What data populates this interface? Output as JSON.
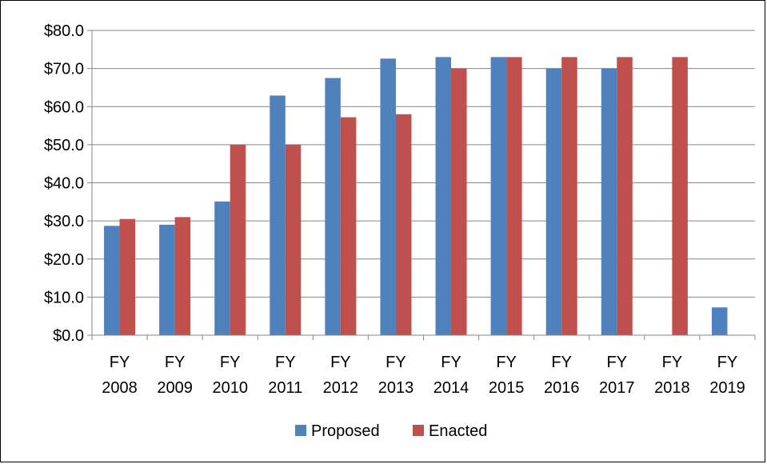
{
  "chart_data": {
    "type": "bar",
    "title": "",
    "xlabel": "",
    "ylabel": "",
    "categories": [
      [
        "FY",
        "2008"
      ],
      [
        "FY",
        "2009"
      ],
      [
        "FY",
        "2010"
      ],
      [
        "FY",
        "2011"
      ],
      [
        "FY",
        "2012"
      ],
      [
        "FY",
        "2013"
      ],
      [
        "FY",
        "2014"
      ],
      [
        "FY",
        "2015"
      ],
      [
        "FY",
        "2016"
      ],
      [
        "FY",
        "2017"
      ],
      [
        "FY",
        "2018"
      ],
      [
        "FY",
        "2019"
      ]
    ],
    "series": [
      {
        "name": "Proposed",
        "color": "#4f81bd",
        "values": [
          28.7,
          29.0,
          35.1,
          62.9,
          67.5,
          72.6,
          73.0,
          73.0,
          70.0,
          70.0,
          null,
          7.3
        ]
      },
      {
        "name": "Enacted",
        "color": "#c0504d",
        "values": [
          30.5,
          31.0,
          50.0,
          50.0,
          57.2,
          58.0,
          70.0,
          73.0,
          73.0,
          73.0,
          73.0,
          null
        ]
      }
    ],
    "ylim": [
      0,
      80
    ],
    "yticks": [
      0,
      10,
      20,
      30,
      40,
      50,
      60,
      70,
      80
    ],
    "ytick_labels": [
      "$0.0",
      "$10.0",
      "$20.0",
      "$30.0",
      "$40.0",
      "$50.0",
      "$60.0",
      "$70.0",
      "$80.0"
    ],
    "grid": true,
    "legend_position": "bottom"
  }
}
